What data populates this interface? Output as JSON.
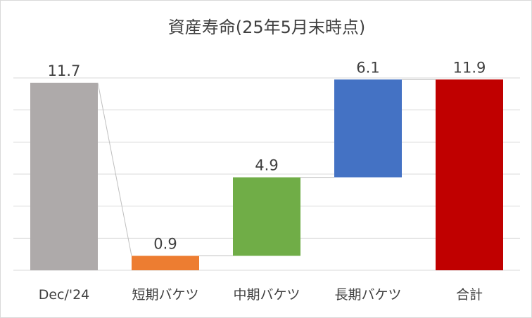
{
  "chart_data": {
    "type": "bar",
    "title": "資産寿命(25年5月末時点)",
    "xlabel": "",
    "ylabel": "",
    "ylim": [
      0,
      12
    ],
    "grid": true,
    "categories": [
      "Dec/'24",
      "短期バケツ",
      "中期バケツ",
      "長期バケツ",
      "合計"
    ],
    "values": [
      11.7,
      0.9,
      4.9,
      6.1,
      11.9
    ],
    "bar_bottoms": [
      0,
      0,
      0.9,
      5.8,
      0
    ],
    "data_labels": [
      "11.7",
      "0.9",
      "4.9",
      "6.1",
      "11.9"
    ],
    "colors": [
      "#aeaaaa",
      "#ed7d31",
      "#70ad47",
      "#4472c4",
      "#c00000"
    ]
  }
}
